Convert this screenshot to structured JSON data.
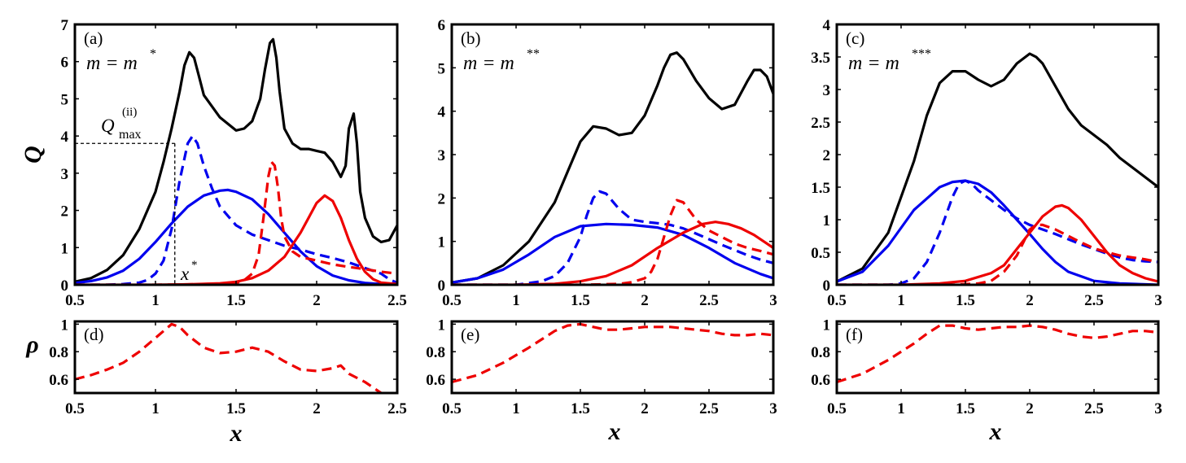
{
  "colors": {
    "black": "#000000",
    "blue": "#0000ee",
    "red": "#ee0000"
  },
  "axis_labels": {
    "q": "Q",
    "rho": "ρ",
    "x": "x"
  },
  "chart_data": [
    {
      "id": "a",
      "type": "line",
      "label": "(a)",
      "mass_prefix": "m = m",
      "mass_sup": "*",
      "xlim": [
        0.5,
        2.5
      ],
      "ylim": [
        0,
        7
      ],
      "xticks": [
        "0.5",
        "1",
        "1.5",
        "2",
        "2.5"
      ],
      "yticks": [
        "0",
        "1",
        "2",
        "3",
        "4",
        "5",
        "6",
        "7"
      ],
      "annotations": {
        "qmax_main": "Q",
        "qmax_sub": "max",
        "qmax_sup": "(ii)",
        "qmax_value": 3.8,
        "xstar_main": "x",
        "xstar_sup": "*",
        "xstar_value": 1.12
      },
      "series": [
        {
          "name": "total",
          "color": "black",
          "dash": false,
          "x": [
            0.5,
            0.6,
            0.7,
            0.8,
            0.9,
            1.0,
            1.05,
            1.1,
            1.15,
            1.18,
            1.21,
            1.24,
            1.27,
            1.3,
            1.4,
            1.5,
            1.55,
            1.6,
            1.65,
            1.68,
            1.71,
            1.73,
            1.75,
            1.77,
            1.8,
            1.85,
            1.9,
            1.95,
            2.0,
            2.05,
            2.1,
            2.15,
            2.18,
            2.2,
            2.23,
            2.25,
            2.27,
            2.3,
            2.35,
            2.4,
            2.45,
            2.5
          ],
          "y": [
            0.08,
            0.18,
            0.4,
            0.8,
            1.5,
            2.5,
            3.3,
            4.2,
            5.2,
            5.9,
            6.25,
            6.1,
            5.6,
            5.1,
            4.5,
            4.15,
            4.2,
            4.4,
            5.0,
            5.8,
            6.5,
            6.6,
            6.1,
            5.2,
            4.2,
            3.8,
            3.65,
            3.65,
            3.6,
            3.55,
            3.3,
            2.9,
            3.2,
            4.2,
            4.6,
            3.8,
            2.5,
            1.8,
            1.3,
            1.15,
            1.2,
            1.6
          ]
        },
        {
          "name": "blue solid",
          "color": "blue",
          "dash": false,
          "x": [
            0.5,
            0.6,
            0.7,
            0.8,
            0.9,
            1.0,
            1.1,
            1.2,
            1.3,
            1.4,
            1.45,
            1.5,
            1.6,
            1.7,
            1.8,
            1.9,
            2.0,
            2.1,
            2.2,
            2.3,
            2.4,
            2.5
          ],
          "y": [
            0.05,
            0.1,
            0.2,
            0.38,
            0.7,
            1.15,
            1.65,
            2.1,
            2.4,
            2.53,
            2.55,
            2.5,
            2.3,
            1.9,
            1.4,
            0.9,
            0.5,
            0.25,
            0.12,
            0.05,
            0.02,
            0.0
          ]
        },
        {
          "name": "blue dashed",
          "color": "blue",
          "dash": true,
          "x": [
            0.5,
            0.7,
            0.8,
            0.9,
            0.95,
            1.0,
            1.05,
            1.1,
            1.15,
            1.2,
            1.23,
            1.26,
            1.3,
            1.35,
            1.4,
            1.5,
            1.6,
            1.7,
            1.8,
            1.9,
            2.0,
            2.1,
            2.2,
            2.3,
            2.4,
            2.45,
            2.5
          ],
          "y": [
            0.0,
            0.0,
            0.02,
            0.06,
            0.13,
            0.3,
            0.65,
            1.5,
            2.8,
            3.8,
            4.0,
            3.8,
            3.2,
            2.6,
            2.1,
            1.6,
            1.35,
            1.2,
            1.05,
            0.95,
            0.82,
            0.72,
            0.6,
            0.45,
            0.3,
            0.15,
            0.05
          ]
        },
        {
          "name": "red solid",
          "color": "red",
          "dash": false,
          "x": [
            0.5,
            1.0,
            1.2,
            1.4,
            1.5,
            1.6,
            1.7,
            1.8,
            1.9,
            1.95,
            2.0,
            2.05,
            2.1,
            2.15,
            2.2,
            2.25,
            2.3,
            2.35,
            2.4,
            2.5
          ],
          "y": [
            0.0,
            0.0,
            0.01,
            0.04,
            0.08,
            0.18,
            0.38,
            0.75,
            1.4,
            1.8,
            2.2,
            2.4,
            2.25,
            1.8,
            1.2,
            0.7,
            0.35,
            0.15,
            0.06,
            0.02
          ]
        },
        {
          "name": "red dashed",
          "color": "red",
          "dash": true,
          "x": [
            0.5,
            1.0,
            1.2,
            1.4,
            1.5,
            1.55,
            1.6,
            1.64,
            1.67,
            1.7,
            1.72,
            1.74,
            1.76,
            1.78,
            1.8,
            1.85,
            1.9,
            2.0,
            2.1,
            2.2,
            2.3,
            2.4,
            2.5
          ],
          "y": [
            0.0,
            0.0,
            0.01,
            0.03,
            0.05,
            0.12,
            0.3,
            0.8,
            1.8,
            2.9,
            3.3,
            3.2,
            2.6,
            1.8,
            1.3,
            0.9,
            0.75,
            0.65,
            0.55,
            0.48,
            0.42,
            0.35,
            0.3
          ]
        }
      ]
    },
    {
      "id": "b",
      "type": "line",
      "label": "(b)",
      "mass_prefix": "m = m",
      "mass_sup": "**",
      "xlim": [
        0.5,
        3
      ],
      "ylim": [
        0,
        6
      ],
      "xticks": [
        "0.5",
        "1",
        "1.5",
        "2",
        "2.5",
        "3"
      ],
      "yticks": [
        "0",
        "1",
        "2",
        "3",
        "4",
        "5",
        "6"
      ],
      "series": [
        {
          "name": "total",
          "color": "black",
          "dash": false,
          "x": [
            0.5,
            0.7,
            0.9,
            1.1,
            1.3,
            1.4,
            1.5,
            1.6,
            1.7,
            1.8,
            1.9,
            2.0,
            2.1,
            2.15,
            2.2,
            2.25,
            2.3,
            2.4,
            2.5,
            2.6,
            2.7,
            2.8,
            2.85,
            2.9,
            2.95,
            3.0
          ],
          "y": [
            0.05,
            0.15,
            0.45,
            1.0,
            1.9,
            2.6,
            3.3,
            3.65,
            3.6,
            3.45,
            3.5,
            3.9,
            4.6,
            5.0,
            5.3,
            5.35,
            5.2,
            4.7,
            4.3,
            4.05,
            4.15,
            4.7,
            4.95,
            4.95,
            4.8,
            4.4
          ]
        },
        {
          "name": "blue solid",
          "color": "blue",
          "dash": false,
          "x": [
            0.5,
            0.7,
            0.9,
            1.1,
            1.3,
            1.5,
            1.7,
            1.9,
            2.1,
            2.3,
            2.5,
            2.7,
            2.9,
            3.0
          ],
          "y": [
            0.05,
            0.15,
            0.35,
            0.7,
            1.1,
            1.35,
            1.4,
            1.38,
            1.32,
            1.15,
            0.85,
            0.5,
            0.25,
            0.15
          ]
        },
        {
          "name": "blue dashed",
          "color": "blue",
          "dash": true,
          "x": [
            0.5,
            1.0,
            1.2,
            1.3,
            1.4,
            1.5,
            1.55,
            1.6,
            1.65,
            1.7,
            1.8,
            1.9,
            2.0,
            2.1,
            2.2,
            2.3,
            2.4,
            2.5,
            2.6,
            2.7,
            2.8,
            2.9,
            3.0
          ],
          "y": [
            0.0,
            0.0,
            0.08,
            0.2,
            0.5,
            1.1,
            1.6,
            2.0,
            2.15,
            2.1,
            1.75,
            1.5,
            1.45,
            1.42,
            1.38,
            1.3,
            1.18,
            1.05,
            0.92,
            0.8,
            0.68,
            0.58,
            0.5
          ]
        },
        {
          "name": "red solid",
          "color": "red",
          "dash": false,
          "x": [
            0.5,
            1.0,
            1.3,
            1.5,
            1.7,
            1.9,
            2.1,
            2.3,
            2.45,
            2.55,
            2.65,
            2.75,
            2.85,
            2.95,
            3.0
          ],
          "y": [
            0.0,
            0.0,
            0.02,
            0.08,
            0.2,
            0.45,
            0.85,
            1.2,
            1.4,
            1.45,
            1.4,
            1.3,
            1.15,
            0.95,
            0.85
          ]
        },
        {
          "name": "red dashed",
          "color": "red",
          "dash": true,
          "x": [
            0.5,
            1.5,
            1.8,
            1.9,
            2.0,
            2.05,
            2.1,
            2.15,
            2.2,
            2.25,
            2.3,
            2.35,
            2.4,
            2.5,
            2.6,
            2.7,
            2.8,
            2.9,
            3.0
          ],
          "y": [
            0.0,
            0.0,
            0.02,
            0.06,
            0.15,
            0.3,
            0.6,
            1.1,
            1.6,
            1.95,
            1.9,
            1.7,
            1.5,
            1.25,
            1.1,
            0.95,
            0.85,
            0.78,
            0.7
          ]
        }
      ]
    },
    {
      "id": "c",
      "type": "line",
      "label": "(c)",
      "mass_prefix": "m = m",
      "mass_sup": "***",
      "xlim": [
        0.5,
        3
      ],
      "ylim": [
        0,
        4
      ],
      "xticks": [
        "0.5",
        "1",
        "1.5",
        "2",
        "2.5",
        "3"
      ],
      "yticks": [
        "0",
        "0.5",
        "1",
        "1.5",
        "2",
        "2.5",
        "3",
        "3.5",
        "4"
      ],
      "series": [
        {
          "name": "total",
          "color": "black",
          "dash": false,
          "x": [
            0.5,
            0.7,
            0.9,
            1.1,
            1.2,
            1.3,
            1.4,
            1.5,
            1.6,
            1.7,
            1.8,
            1.9,
            2.0,
            2.05,
            2.1,
            2.2,
            2.3,
            2.4,
            2.5,
            2.6,
            2.7,
            2.8,
            2.9,
            3.0
          ],
          "y": [
            0.05,
            0.25,
            0.8,
            1.9,
            2.6,
            3.1,
            3.28,
            3.28,
            3.15,
            3.05,
            3.15,
            3.4,
            3.55,
            3.5,
            3.4,
            3.05,
            2.7,
            2.45,
            2.3,
            2.15,
            1.95,
            1.8,
            1.65,
            1.5
          ]
        },
        {
          "name": "blue solid",
          "color": "blue",
          "dash": false,
          "x": [
            0.5,
            0.7,
            0.9,
            1.1,
            1.3,
            1.4,
            1.5,
            1.6,
            1.7,
            1.8,
            1.9,
            2.0,
            2.1,
            2.2,
            2.3,
            2.5,
            2.7,
            3.0
          ],
          "y": [
            0.05,
            0.2,
            0.6,
            1.15,
            1.5,
            1.58,
            1.6,
            1.55,
            1.42,
            1.22,
            1.0,
            0.78,
            0.55,
            0.35,
            0.2,
            0.06,
            0.02,
            0.0
          ]
        },
        {
          "name": "blue dashed",
          "color": "blue",
          "dash": true,
          "x": [
            0.5,
            0.9,
            1.0,
            1.1,
            1.2,
            1.3,
            1.4,
            1.45,
            1.5,
            1.55,
            1.6,
            1.7,
            1.8,
            1.9,
            2.0,
            2.1,
            2.2,
            2.3,
            2.4,
            2.5,
            2.6,
            2.7,
            2.8,
            2.9,
            3.0
          ],
          "y": [
            0.0,
            0.0,
            0.02,
            0.1,
            0.35,
            0.8,
            1.35,
            1.55,
            1.6,
            1.55,
            1.45,
            1.3,
            1.15,
            1.02,
            0.92,
            0.85,
            0.78,
            0.7,
            0.62,
            0.55,
            0.48,
            0.42,
            0.38,
            0.36,
            0.35
          ]
        },
        {
          "name": "red solid",
          "color": "red",
          "dash": false,
          "x": [
            0.5,
            1.0,
            1.3,
            1.5,
            1.7,
            1.8,
            1.9,
            2.0,
            2.1,
            2.2,
            2.25,
            2.3,
            2.4,
            2.5,
            2.6,
            2.7,
            2.8,
            2.9,
            3.0
          ],
          "y": [
            0.0,
            0.0,
            0.02,
            0.06,
            0.18,
            0.3,
            0.55,
            0.8,
            1.05,
            1.2,
            1.22,
            1.18,
            1.0,
            0.75,
            0.5,
            0.3,
            0.18,
            0.1,
            0.05
          ]
        },
        {
          "name": "red dashed",
          "color": "red",
          "dash": true,
          "x": [
            0.5,
            1.4,
            1.6,
            1.7,
            1.8,
            1.9,
            1.95,
            2.0,
            2.05,
            2.1,
            2.2,
            2.3,
            2.4,
            2.5,
            2.6,
            2.7,
            2.8,
            2.9,
            3.0
          ],
          "y": [
            0.0,
            0.0,
            0.02,
            0.06,
            0.2,
            0.45,
            0.65,
            0.85,
            0.92,
            0.92,
            0.85,
            0.75,
            0.65,
            0.56,
            0.5,
            0.45,
            0.42,
            0.39,
            0.35
          ]
        }
      ]
    },
    {
      "id": "d",
      "type": "line",
      "label": "(d)",
      "xlim": [
        0.5,
        2.5
      ],
      "ylim": [
        0.5,
        1.02
      ],
      "xticks": [
        "0.5",
        "1",
        "1.5",
        "2",
        "2.5"
      ],
      "yticks": [
        "0.6",
        "0.8",
        "1"
      ],
      "series": [
        {
          "name": "rho",
          "color": "red",
          "dash": true,
          "x": [
            0.5,
            0.6,
            0.7,
            0.8,
            0.9,
            1.0,
            1.05,
            1.1,
            1.15,
            1.2,
            1.3,
            1.4,
            1.5,
            1.6,
            1.7,
            1.8,
            1.9,
            2.0,
            2.1,
            2.15,
            2.2,
            2.3,
            2.35,
            2.4
          ],
          "y": [
            0.6,
            0.63,
            0.67,
            0.72,
            0.8,
            0.9,
            0.95,
            1.0,
            0.98,
            0.92,
            0.83,
            0.79,
            0.8,
            0.83,
            0.8,
            0.73,
            0.67,
            0.66,
            0.68,
            0.7,
            0.64,
            0.58,
            0.54,
            0.5
          ]
        }
      ]
    },
    {
      "id": "e",
      "type": "line",
      "label": "(e)",
      "xlim": [
        0.5,
        3
      ],
      "ylim": [
        0.5,
        1.02
      ],
      "xticks": [
        "0.5",
        "1",
        "1.5",
        "2",
        "2.5",
        "3"
      ],
      "yticks": [
        "0.6",
        "0.8",
        "1"
      ],
      "series": [
        {
          "name": "rho",
          "color": "red",
          "dash": true,
          "x": [
            0.5,
            0.7,
            0.9,
            1.1,
            1.3,
            1.4,
            1.5,
            1.6,
            1.7,
            1.8,
            1.9,
            2.0,
            2.1,
            2.2,
            2.3,
            2.4,
            2.5,
            2.6,
            2.7,
            2.8,
            2.9,
            3.0
          ],
          "y": [
            0.58,
            0.63,
            0.72,
            0.83,
            0.95,
            0.99,
            1.0,
            0.98,
            0.96,
            0.96,
            0.97,
            0.98,
            0.98,
            0.98,
            0.97,
            0.96,
            0.95,
            0.93,
            0.92,
            0.92,
            0.93,
            0.92
          ]
        }
      ]
    },
    {
      "id": "f",
      "type": "line",
      "label": "(f)",
      "xlim": [
        0.5,
        3
      ],
      "ylim": [
        0.5,
        1.02
      ],
      "xticks": [
        "0.5",
        "1",
        "1.5",
        "2",
        "2.5",
        "3"
      ],
      "yticks": [
        "0.6",
        "0.8",
        "1"
      ],
      "series": [
        {
          "name": "rho",
          "color": "red",
          "dash": true,
          "x": [
            0.5,
            0.7,
            0.9,
            1.1,
            1.2,
            1.3,
            1.4,
            1.5,
            1.6,
            1.7,
            1.8,
            1.9,
            2.0,
            2.1,
            2.2,
            2.3,
            2.4,
            2.5,
            2.6,
            2.7,
            2.8,
            2.9,
            3.0
          ],
          "y": [
            0.58,
            0.64,
            0.74,
            0.86,
            0.93,
            0.99,
            0.99,
            0.97,
            0.96,
            0.97,
            0.98,
            0.98,
            0.99,
            0.98,
            0.96,
            0.93,
            0.91,
            0.9,
            0.91,
            0.93,
            0.95,
            0.95,
            0.94
          ]
        }
      ]
    }
  ]
}
